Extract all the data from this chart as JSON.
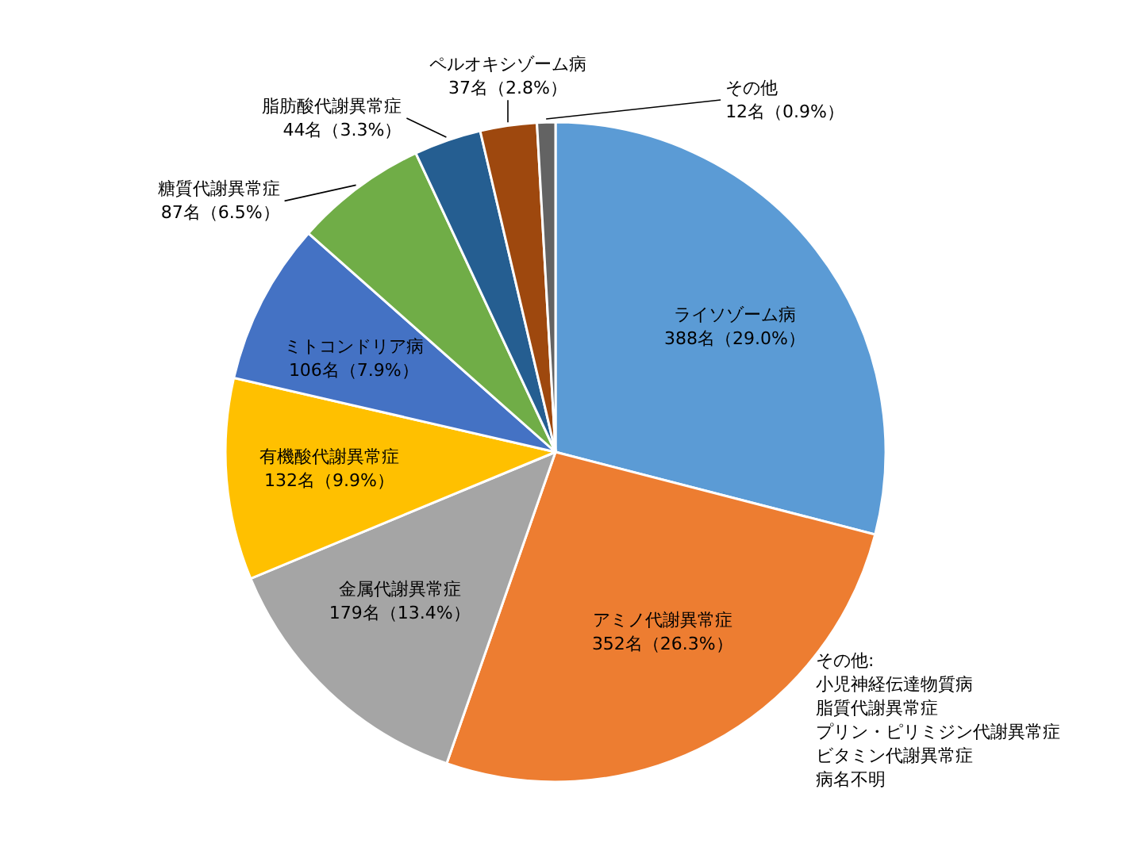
{
  "chart_data": {
    "type": "pie",
    "categories": [
      "ライソゾーム病",
      "アミノ代謝異常症",
      "金属代謝異常症",
      "有機酸代謝異常症",
      "ミトコンドリア病",
      "糖質代謝異常症",
      "脂肪酸代謝異常症",
      "ペルオキシゾーム病",
      "その他"
    ],
    "values": [
      388,
      352,
      179,
      132,
      106,
      87,
      44,
      37,
      12
    ],
    "value_labels": [
      "388名（29.0%）",
      "352名（26.3%）",
      "179名（13.4%）",
      "132名（9.9%）",
      "106名（7.9%）",
      "87名（6.5%）",
      "44名（3.3%）",
      "37名（2.8%）",
      "12名（0.9%）"
    ],
    "colors": [
      "#5b9bd5",
      "#ed7d31",
      "#a5a5a5",
      "#ffc000",
      "#4472c4",
      "#70ad47",
      "#255e91",
      "#9e480e",
      "#636363"
    ],
    "legend": false,
    "annotations": [
      "その他:",
      "小児神経伝達物質病",
      "脂質代謝異常症",
      "プリン・ピリミジン代謝異常症",
      "ビタミン代謝異常症",
      "病名不明"
    ]
  }
}
